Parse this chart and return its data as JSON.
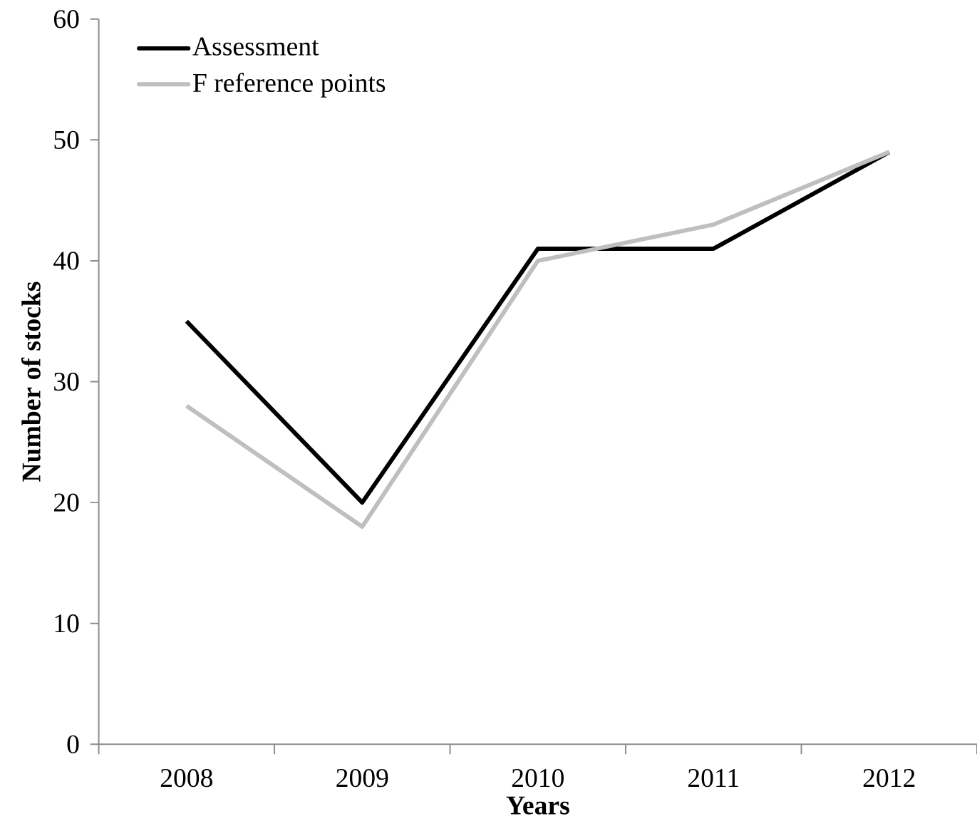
{
  "chart_data": {
    "type": "line",
    "xlabel": "Years",
    "ylabel": "Number of stocks",
    "categories": [
      "2008",
      "2009",
      "2010",
      "2011",
      "2012"
    ],
    "series": [
      {
        "name": "Assessment",
        "color": "#000000",
        "values": [
          35,
          20,
          41,
          41,
          49
        ]
      },
      {
        "name": "F reference points",
        "color": "#bfbfbf",
        "values": [
          28,
          18,
          40,
          43,
          49
        ]
      }
    ],
    "ylim": [
      0,
      60
    ],
    "yticks": [
      0,
      10,
      20,
      30,
      40,
      50,
      60
    ],
    "grid": false,
    "legend": "top left",
    "marker": "none",
    "line_style": "solid"
  }
}
